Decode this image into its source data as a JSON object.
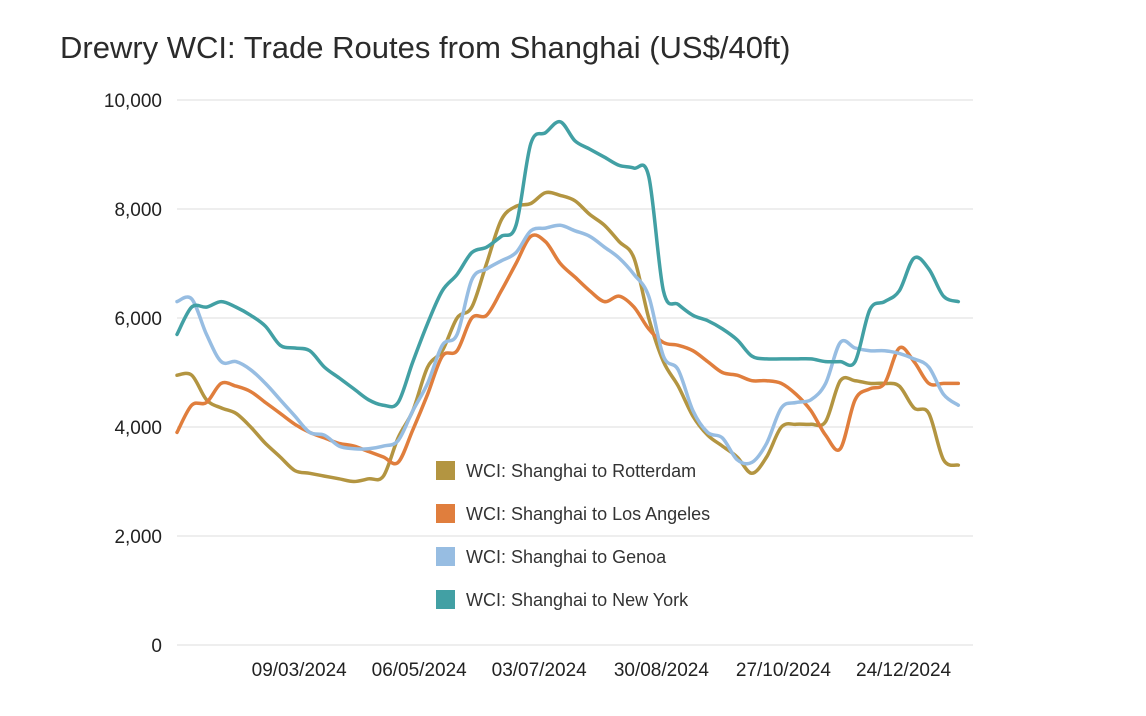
{
  "chart_data": {
    "type": "line",
    "title": "Drewry WCI: Trade Routes from Shanghai (US$/40ft)",
    "xlabel": "",
    "ylabel": "",
    "ylim": [
      0,
      10000
    ],
    "y_ticks": [
      0,
      2000,
      4000,
      6000,
      8000,
      10000
    ],
    "y_tick_labels": [
      "0",
      "2,000",
      "4,000",
      "6,000",
      "8,000",
      "10,000"
    ],
    "x_tick_labels": [
      "09/03/2024",
      "06/05/2024",
      "03/07/2024",
      "30/08/2024",
      "27/10/2024",
      "24/12/2024"
    ],
    "x_tick_weeks": [
      8.29,
      16.43,
      24.57,
      32.86,
      41.14,
      49.29
    ],
    "x_range": [
      0,
      54
    ],
    "x_start": "11/01/2024",
    "grid": true,
    "legend_position": "center",
    "x": [
      "11/01/2024",
      "18/01/2024",
      "25/01/2024",
      "01/02/2024",
      "08/02/2024",
      "15/02/2024",
      "22/02/2024",
      "29/02/2024",
      "07/03/2024",
      "14/03/2024",
      "21/03/2024",
      "28/03/2024",
      "04/04/2024",
      "11/04/2024",
      "18/04/2024",
      "25/04/2024",
      "02/05/2024",
      "09/05/2024",
      "16/05/2024",
      "23/05/2024",
      "30/05/2024",
      "06/06/2024",
      "13/06/2024",
      "20/06/2024",
      "27/06/2024",
      "04/07/2024",
      "11/07/2024",
      "18/07/2024",
      "25/07/2024",
      "01/08/2024",
      "08/08/2024",
      "15/08/2024",
      "22/08/2024",
      "29/08/2024",
      "05/09/2024",
      "12/09/2024",
      "19/09/2024",
      "26/09/2024",
      "03/10/2024",
      "10/10/2024",
      "17/10/2024",
      "24/10/2024",
      "31/10/2024",
      "07/11/2024",
      "14/11/2024",
      "21/11/2024",
      "28/11/2024",
      "05/12/2024",
      "12/12/2024",
      "19/12/2024",
      "26/12/2024",
      "02/01/2025",
      "09/01/2025",
      "16/01/2025"
    ],
    "series": [
      {
        "name": "WCI: Shanghai to Rotterdam",
        "color": "#B39541",
        "values": [
          4950,
          4950,
          4500,
          4350,
          4250,
          4000,
          3700,
          3450,
          3200,
          3150,
          3100,
          3050,
          3000,
          3050,
          3100,
          3800,
          4300,
          5100,
          5400,
          6000,
          6200,
          7000,
          7800,
          8050,
          8100,
          8300,
          8250,
          8150,
          7900,
          7700,
          7400,
          7100,
          6000,
          5200,
          4750,
          4200,
          3850,
          3650,
          3450,
          3150,
          3450,
          4000,
          4050,
          4050,
          4100,
          4850,
          4850,
          4800,
          4800,
          4750,
          4350,
          4250,
          3400,
          3300
        ]
      },
      {
        "name": "WCI: Shanghai to Los Angeles",
        "color": "#E07E3D",
        "values": [
          3900,
          4400,
          4450,
          4800,
          4750,
          4650,
          4450,
          4250,
          4050,
          3900,
          3800,
          3700,
          3650,
          3550,
          3450,
          3350,
          3950,
          4600,
          5300,
          5400,
          6000,
          6050,
          6500,
          7000,
          7500,
          7400,
          7000,
          6750,
          6500,
          6300,
          6400,
          6200,
          5800,
          5550,
          5500,
          5400,
          5200,
          5000,
          4950,
          4850,
          4850,
          4800,
          4600,
          4300,
          3850,
          3600,
          4500,
          4700,
          4800,
          5450,
          5200,
          4800,
          4800,
          4800
        ]
      },
      {
        "name": "WCI: Shanghai to Genoa",
        "color": "#97BDE2",
        "values": [
          6300,
          6350,
          5700,
          5200,
          5200,
          5050,
          4800,
          4500,
          4200,
          3900,
          3850,
          3650,
          3600,
          3600,
          3650,
          3750,
          4300,
          4800,
          5500,
          5700,
          6700,
          6900,
          7050,
          7200,
          7600,
          7650,
          7700,
          7600,
          7500,
          7300,
          7100,
          6800,
          6400,
          5300,
          5050,
          4300,
          3900,
          3800,
          3400,
          3350,
          3700,
          4350,
          4450,
          4500,
          4800,
          5550,
          5450,
          5400,
          5400,
          5350,
          5250,
          5100,
          4600,
          4400
        ]
      },
      {
        "name": "WCI: Shanghai to New York",
        "color": "#42A0A4",
        "values": [
          5700,
          6200,
          6200,
          6300,
          6200,
          6050,
          5850,
          5500,
          5450,
          5400,
          5100,
          4900,
          4700,
          4500,
          4400,
          4450,
          5200,
          5900,
          6500,
          6800,
          7200,
          7300,
          7500,
          7700,
          9200,
          9400,
          9600,
          9250,
          9100,
          8950,
          8800,
          8750,
          8600,
          6500,
          6250,
          6050,
          5950,
          5800,
          5600,
          5300,
          5250,
          5250,
          5250,
          5250,
          5200,
          5200,
          5200,
          6150,
          6300,
          6500,
          7100,
          6900,
          6400,
          6300
        ]
      }
    ]
  }
}
